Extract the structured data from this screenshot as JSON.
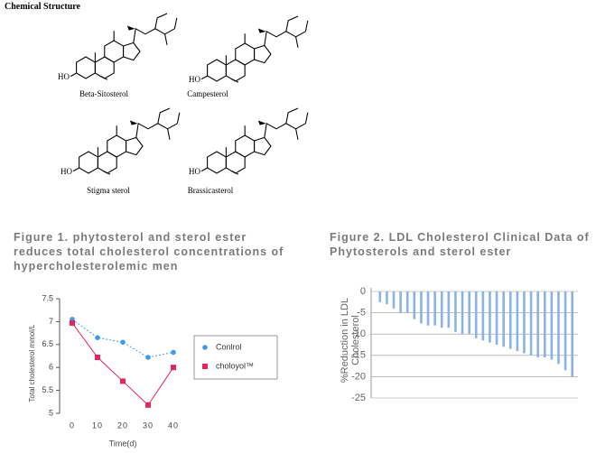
{
  "header": {
    "title": "Chemical Structure"
  },
  "structures": [
    {
      "name": "Beta-Sitosterol",
      "group": "HO"
    },
    {
      "name": "Campesterol",
      "group": "HO"
    },
    {
      "name": "Stigma sterol",
      "group": "HO"
    },
    {
      "name": "Brassicasterol",
      "group": "HO"
    }
  ],
  "figures": [
    {
      "caption": "Figure 1. phytosterol and sterol ester reduces total cholesterol concentrations of hypercholesterolemic men"
    },
    {
      "caption": "Figure 2. LDL Cholesterol Clinical Data of Phytosterols and sterol ester"
    }
  ],
  "chart_data": [
    {
      "type": "line",
      "xlabel": "Time(d)",
      "ylabel": "Total cholesterol mmol/L",
      "x": [
        0,
        10,
        20,
        30,
        40
      ],
      "xlim": [
        -5,
        45
      ],
      "xticks": [
        0,
        10,
        20,
        30,
        40
      ],
      "ylim": [
        5,
        7.5
      ],
      "yticks": [
        5,
        5.5,
        6,
        6.5,
        7,
        7.5
      ],
      "series": [
        {
          "name": "Conlrol",
          "color": "#3d9be9",
          "marker": "circle",
          "values": [
            7.05,
            6.65,
            6.55,
            6.22,
            6.33
          ]
        },
        {
          "name": "choloyol™",
          "color": "#e8245a",
          "marker": "square",
          "values": [
            6.97,
            6.22,
            5.7,
            5.18,
            6.0
          ]
        }
      ]
    },
    {
      "type": "bar",
      "ylabel": "%Reduction in LDL Cholesterol",
      "categories": [
        null,
        null,
        null,
        null,
        null,
        null,
        null,
        null,
        null,
        null,
        null,
        null,
        null,
        null,
        null,
        null,
        null,
        null,
        null,
        null,
        null,
        null,
        null,
        null,
        null,
        null,
        null,
        null,
        null
      ],
      "values": [
        -2.5,
        -3,
        -4,
        -5,
        -5,
        -6.5,
        -7.5,
        -8,
        -8,
        -8.5,
        -8.5,
        -9.5,
        -10,
        -10,
        -11,
        -11.5,
        -12,
        -12.5,
        -13,
        -13.5,
        -14,
        -14.5,
        -15,
        -15.5,
        -15.5,
        -16,
        -17,
        -18.5,
        -20
      ],
      "color": "#8ab4e8",
      "ylim": [
        -25,
        0
      ],
      "yticks": [
        0,
        -5,
        -10,
        -15,
        -20,
        -25
      ],
      "grid": true
    }
  ]
}
